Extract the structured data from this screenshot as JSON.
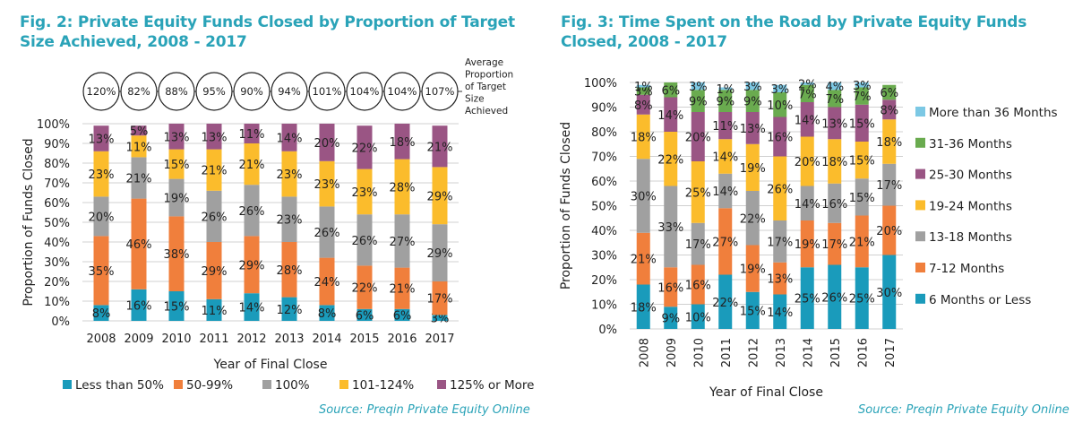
{
  "colors": {
    "title": "#2aa3b8",
    "teal": "#1a9bbb",
    "orange": "#f07f3c",
    "gray": "#a0a0a0",
    "yellow": "#fbbc2c",
    "purple": "#9a5584",
    "green": "#6aab4f",
    "lightblue": "#7cc8e4",
    "grid": "#d0d0d0",
    "text": "#222222"
  },
  "chart_data": [
    {
      "type": "bar",
      "stacked": true,
      "title": "Fig. 2: Private Equity Funds Closed by Proportion of Target Size Achieved, 2008 - 2017",
      "xlabel": "Year of Final Close",
      "ylabel": "Proportion of Funds Closed",
      "ylim": [
        0,
        100
      ],
      "yticks": [
        "0%",
        "10%",
        "20%",
        "30%",
        "40%",
        "50%",
        "60%",
        "70%",
        "80%",
        "90%",
        "100%"
      ],
      "grid": true,
      "legend_position": "bottom",
      "categories": [
        "2008",
        "2009",
        "2010",
        "2011",
        "2012",
        "2013",
        "2014",
        "2015",
        "2016",
        "2017"
      ],
      "series": [
        {
          "name": "Less than 50%",
          "color": "#1a9bbb",
          "values": [
            8,
            16,
            15,
            11,
            14,
            12,
            8,
            6,
            6,
            3
          ]
        },
        {
          "name": "50-99%",
          "color": "#f07f3c",
          "values": [
            35,
            46,
            38,
            29,
            29,
            28,
            24,
            22,
            21,
            17
          ]
        },
        {
          "name": "100%",
          "color": "#a0a0a0",
          "values": [
            20,
            21,
            19,
            26,
            26,
            23,
            26,
            26,
            27,
            29
          ]
        },
        {
          "name": "101-124%",
          "color": "#fbbc2c",
          "values": [
            23,
            11,
            15,
            21,
            21,
            23,
            23,
            23,
            28,
            29
          ]
        },
        {
          "name": "125% or More",
          "color": "#9a5584",
          "values": [
            13,
            5,
            13,
            13,
            11,
            14,
            20,
            22,
            18,
            21
          ]
        }
      ],
      "annotation": {
        "label": "Average Proportion of Target Size Achieved",
        "values": [
          "120%",
          "82%",
          "88%",
          "95%",
          "90%",
          "94%",
          "101%",
          "104%",
          "104%",
          "107%"
        ]
      },
      "source": "Source: Preqin Private Equity Online"
    },
    {
      "type": "bar",
      "stacked": true,
      "title": "Fig. 3: Time Spent on the Road by Private Equity Funds Closed, 2008 - 2017",
      "xlabel": "Year of Final Close",
      "ylabel": "Proportion of Funds Closed",
      "ylim": [
        0,
        100
      ],
      "yticks": [
        "0%",
        "10%",
        "20%",
        "30%",
        "40%",
        "50%",
        "60%",
        "70%",
        "80%",
        "90%",
        "100%"
      ],
      "grid": true,
      "legend_position": "right",
      "categories": [
        "2008",
        "2009",
        "2010",
        "2011",
        "2012",
        "2013",
        "2014",
        "2015",
        "2016",
        "2017"
      ],
      "series": [
        {
          "name": "6 Months or Less",
          "color": "#1a9bbb",
          "values": [
            18,
            9,
            10,
            22,
            15,
            14,
            25,
            26,
            25,
            30
          ]
        },
        {
          "name": "7-12 Months",
          "color": "#f07f3c",
          "values": [
            21,
            16,
            16,
            27,
            19,
            13,
            19,
            17,
            21,
            20
          ]
        },
        {
          "name": "13-18 Months",
          "color": "#a0a0a0",
          "values": [
            30,
            33,
            17,
            14,
            22,
            17,
            14,
            16,
            15,
            17
          ]
        },
        {
          "name": "19-24 Months",
          "color": "#fbbc2c",
          "values": [
            18,
            22,
            25,
            14,
            19,
            26,
            20,
            18,
            15,
            18
          ]
        },
        {
          "name": "25-30 Months",
          "color": "#9a5584",
          "values": [
            8,
            14,
            20,
            11,
            13,
            16,
            14,
            13,
            15,
            8
          ]
        },
        {
          "name": "31-36 Months",
          "color": "#6aab4f",
          "values": [
            3,
            6,
            9,
            9,
            9,
            10,
            7,
            7,
            7,
            6
          ]
        },
        {
          "name": "More than 36 Months",
          "color": "#7cc8e4",
          "values": [
            1,
            0,
            3,
            1,
            3,
            3,
            2,
            4,
            3,
            0
          ]
        }
      ],
      "source": "Source: Preqin Private Equity Online"
    }
  ]
}
